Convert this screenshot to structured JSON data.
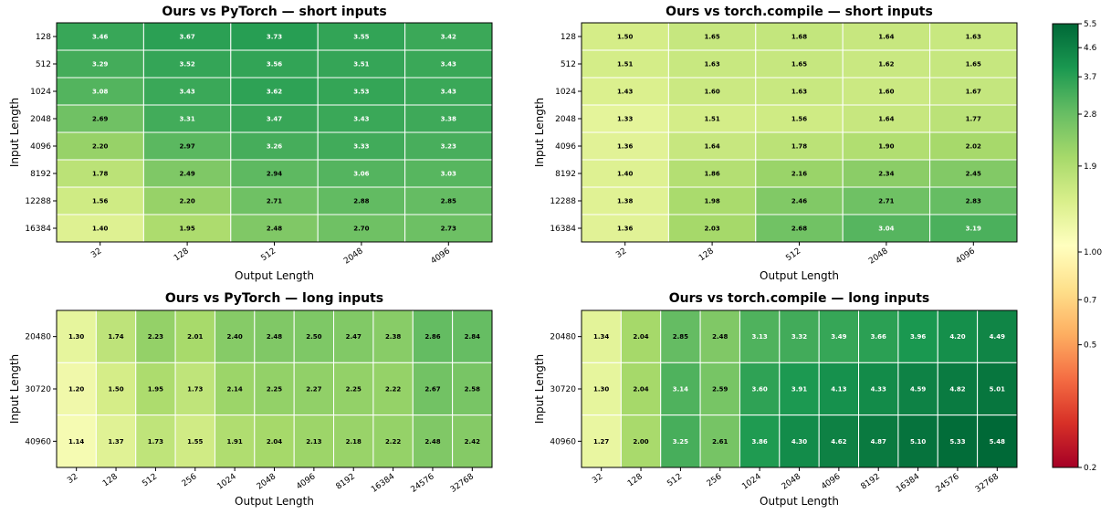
{
  "chart_data": [
    {
      "type": "heatmap",
      "title": "Ours vs PyTorch — short inputs",
      "xlabel": "Output Length",
      "ylabel": "Input Length",
      "x": [
        "32",
        "128",
        "512",
        "2048",
        "4096"
      ],
      "y": [
        "128",
        "512",
        "1024",
        "2048",
        "4096",
        "8192",
        "12288",
        "16384"
      ],
      "values": [
        [
          3.46,
          3.67,
          3.73,
          3.55,
          3.42
        ],
        [
          3.29,
          3.52,
          3.56,
          3.51,
          3.43
        ],
        [
          3.08,
          3.43,
          3.62,
          3.53,
          3.43
        ],
        [
          2.69,
          3.31,
          3.47,
          3.43,
          3.38
        ],
        [
          2.2,
          2.97,
          3.26,
          3.33,
          3.23
        ],
        [
          1.78,
          2.49,
          2.94,
          3.06,
          3.03
        ],
        [
          1.56,
          2.2,
          2.71,
          2.88,
          2.85
        ],
        [
          1.4,
          1.95,
          2.48,
          2.7,
          2.73
        ]
      ]
    },
    {
      "type": "heatmap",
      "title": "Ours vs torch.compile — short inputs",
      "xlabel": "Output Length",
      "ylabel": "Input Length",
      "x": [
        "32",
        "128",
        "512",
        "2048",
        "4096"
      ],
      "y": [
        "128",
        "512",
        "1024",
        "2048",
        "4096",
        "8192",
        "12288",
        "16384"
      ],
      "values": [
        [
          1.5,
          1.65,
          1.68,
          1.64,
          1.63
        ],
        [
          1.51,
          1.63,
          1.65,
          1.62,
          1.65
        ],
        [
          1.43,
          1.6,
          1.63,
          1.6,
          1.67
        ],
        [
          1.33,
          1.51,
          1.56,
          1.64,
          1.77
        ],
        [
          1.36,
          1.64,
          1.78,
          1.9,
          2.02
        ],
        [
          1.4,
          1.86,
          2.16,
          2.34,
          2.45
        ],
        [
          1.38,
          1.98,
          2.46,
          2.71,
          2.83
        ],
        [
          1.36,
          2.03,
          2.68,
          3.04,
          3.19
        ]
      ]
    },
    {
      "type": "heatmap",
      "title": "Ours vs PyTorch — long inputs",
      "xlabel": "Output Length",
      "ylabel": "Input Length",
      "x": [
        "32",
        "128",
        "512",
        "256",
        "1024",
        "2048",
        "4096",
        "8192",
        "16384",
        "24576",
        "32768"
      ],
      "y": [
        "20480",
        "30720",
        "40960"
      ],
      "values": [
        [
          1.3,
          1.74,
          2.23,
          2.01,
          2.4,
          2.48,
          2.5,
          2.47,
          2.38,
          2.86,
          2.84
        ],
        [
          1.2,
          1.5,
          1.95,
          1.73,
          2.14,
          2.25,
          2.27,
          2.25,
          2.22,
          2.67,
          2.58
        ],
        [
          1.14,
          1.37,
          1.73,
          1.55,
          1.91,
          2.04,
          2.13,
          2.18,
          2.22,
          2.48,
          2.42
        ]
      ]
    },
    {
      "type": "heatmap",
      "title": "Ours vs torch.compile — long inputs",
      "xlabel": "Output Length",
      "ylabel": "Input Length",
      "x": [
        "32",
        "128",
        "512",
        "256",
        "1024",
        "2048",
        "4096",
        "8192",
        "16384",
        "24576",
        "32768"
      ],
      "y": [
        "20480",
        "30720",
        "40960"
      ],
      "values": [
        [
          1.34,
          2.04,
          2.85,
          2.48,
          3.13,
          3.32,
          3.49,
          3.66,
          3.96,
          4.2,
          4.49
        ],
        [
          1.3,
          2.04,
          3.14,
          2.59,
          3.6,
          3.91,
          4.13,
          4.33,
          4.59,
          4.82,
          5.01
        ],
        [
          1.27,
          2.0,
          3.25,
          2.61,
          3.86,
          4.3,
          4.62,
          4.87,
          5.1,
          5.33,
          5.48
        ]
      ]
    }
  ],
  "colorbar": {
    "colormap": "RdYlGn",
    "scale": "log",
    "range": [
      0.2,
      5.5
    ],
    "ticks": [
      "0.2",
      "0.5",
      "0.7",
      "1.00",
      "1.9",
      "2.8",
      "3.7",
      "4.6",
      "5.5"
    ]
  }
}
